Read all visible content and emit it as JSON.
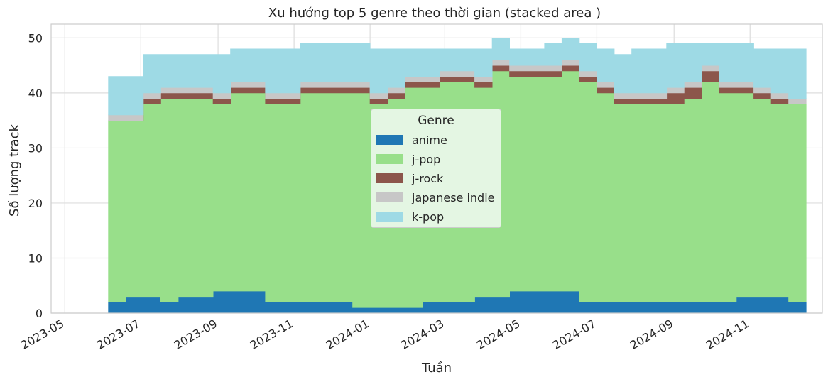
{
  "chart_data": {
    "type": "area",
    "stacked": true,
    "title": "Xu hướng top 5 genre theo thời gian (stacked area )",
    "xlabel": "Tuần",
    "ylabel": "Số lượng track",
    "ylim": [
      0,
      52.5
    ],
    "xlim": [
      "2023-04-20",
      "2024-12-29"
    ],
    "yticks": [
      0,
      10,
      20,
      30,
      40,
      50
    ],
    "xticks": [
      "2023-05",
      "2023-07",
      "2023-09",
      "2023-11",
      "2024-01",
      "2024-03",
      "2024-05",
      "2024-07",
      "2024-09",
      "2024-11"
    ],
    "grid": true,
    "legend": {
      "title": "Genre",
      "placement": "center"
    },
    "x": [
      "2023-06-05",
      "2023-06-19",
      "2023-07-03",
      "2023-07-17",
      "2023-07-31",
      "2023-08-14",
      "2023-08-28",
      "2023-09-11",
      "2023-09-25",
      "2023-10-09",
      "2023-10-23",
      "2023-11-06",
      "2023-11-20",
      "2023-12-04",
      "2023-12-18",
      "2024-01-01",
      "2024-01-15",
      "2024-01-29",
      "2024-02-12",
      "2024-02-26",
      "2024-03-11",
      "2024-03-25",
      "2024-04-08",
      "2024-04-22",
      "2024-05-06",
      "2024-05-20",
      "2024-06-03",
      "2024-06-17",
      "2024-07-01",
      "2024-07-15",
      "2024-07-29",
      "2024-08-12",
      "2024-08-26",
      "2024-09-09",
      "2024-09-23",
      "2024-10-07",
      "2024-10-21",
      "2024-11-04",
      "2024-11-18",
      "2024-12-02"
    ],
    "series": [
      {
        "name": "anime",
        "color": "#1f77b4",
        "values": [
          2,
          3,
          3,
          2,
          3,
          3,
          4,
          4,
          4,
          2,
          2,
          2,
          2,
          2,
          1,
          1,
          1,
          1,
          2,
          2,
          2,
          3,
          3,
          4,
          4,
          4,
          4,
          2,
          2,
          2,
          2,
          2,
          2,
          2,
          2,
          2,
          3,
          3,
          3,
          2
        ]
      },
      {
        "name": "j-pop",
        "color": "#98df8a",
        "values": [
          33,
          32,
          35,
          37,
          36,
          36,
          34,
          36,
          36,
          36,
          36,
          38,
          38,
          38,
          39,
          37,
          38,
          40,
          39,
          40,
          40,
          38,
          41,
          39,
          39,
          39,
          40,
          40,
          38,
          36,
          36,
          36,
          36,
          37,
          40,
          38,
          37,
          36,
          35,
          36
        ]
      },
      {
        "name": "j-rock",
        "color": "#8c564b",
        "values": [
          0,
          0,
          1,
          1,
          1,
          1,
          1,
          1,
          1,
          1,
          1,
          1,
          1,
          1,
          1,
          1,
          1,
          1,
          1,
          1,
          1,
          1,
          1,
          1,
          1,
          1,
          1,
          1,
          1,
          1,
          1,
          1,
          2,
          2,
          2,
          1,
          1,
          1,
          1,
          0
        ]
      },
      {
        "name": "japanese indie",
        "color": "#c7c7c7",
        "values": [
          1,
          1,
          1,
          1,
          1,
          1,
          1,
          1,
          1,
          1,
          1,
          1,
          1,
          1,
          1,
          1,
          1,
          1,
          1,
          1,
          1,
          1,
          1,
          1,
          1,
          1,
          1,
          1,
          1,
          1,
          1,
          1,
          1,
          1,
          1,
          1,
          1,
          1,
          1,
          1
        ]
      },
      {
        "name": "k-pop",
        "color": "#9edae5",
        "values": [
          7,
          7,
          7,
          6,
          6,
          6,
          7,
          6,
          6,
          8,
          8,
          7,
          7,
          7,
          7,
          8,
          7,
          5,
          5,
          4,
          4,
          5,
          4,
          3,
          3,
          4,
          4,
          5,
          6,
          7,
          8,
          8,
          8,
          7,
          4,
          7,
          7,
          7,
          8,
          9
        ]
      }
    ]
  }
}
